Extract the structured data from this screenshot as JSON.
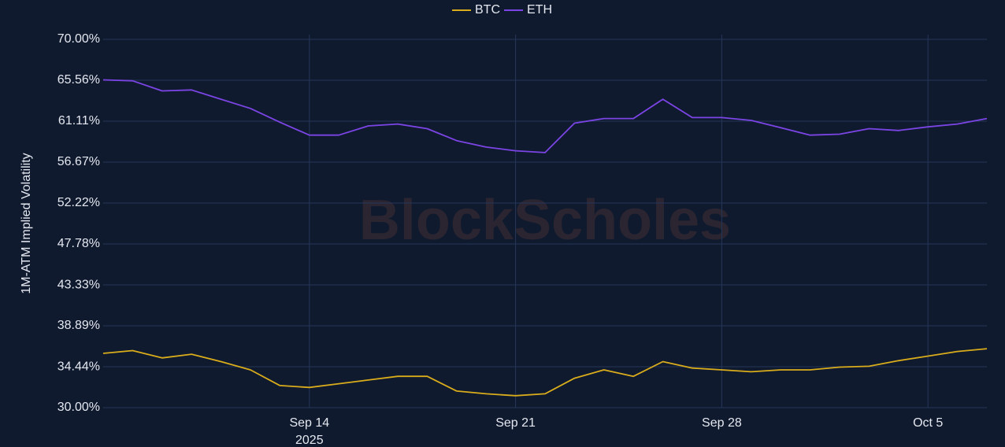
{
  "chart_data": {
    "type": "line",
    "y_axis_label": "1M-ATM Implied Volatility",
    "watermark": "BlockScholes",
    "x_year_label": "2025",
    "x": [
      "2025-09-07",
      "2025-09-08",
      "2025-09-09",
      "2025-09-10",
      "2025-09-11",
      "2025-09-12",
      "2025-09-13",
      "2025-09-14",
      "2025-09-15",
      "2025-09-16",
      "2025-09-17",
      "2025-09-18",
      "2025-09-19",
      "2025-09-20",
      "2025-09-21",
      "2025-09-22",
      "2025-09-23",
      "2025-09-24",
      "2025-09-25",
      "2025-09-26",
      "2025-09-27",
      "2025-09-28",
      "2025-09-29",
      "2025-09-30",
      "2025-10-01",
      "2025-10-02",
      "2025-10-03",
      "2025-10-04",
      "2025-10-05",
      "2025-10-06",
      "2025-10-07"
    ],
    "series": [
      {
        "name": "BTC",
        "color": "#d9ac1c",
        "values": [
          35.9,
          36.2,
          35.4,
          35.8,
          35.0,
          34.1,
          32.4,
          32.2,
          32.6,
          33.0,
          33.4,
          33.4,
          31.8,
          31.5,
          31.3,
          31.5,
          33.2,
          34.1,
          33.4,
          35.0,
          34.3,
          34.1,
          33.9,
          34.1,
          34.1,
          34.4,
          34.5,
          35.1,
          35.6,
          36.1,
          36.4
        ]
      },
      {
        "name": "ETH",
        "color": "#7b45e6",
        "values": [
          65.6,
          65.5,
          64.4,
          64.5,
          63.5,
          62.5,
          61.0,
          59.6,
          59.6,
          60.6,
          60.8,
          60.3,
          59.0,
          58.3,
          57.9,
          57.7,
          60.9,
          61.4,
          61.4,
          63.5,
          61.5,
          61.5,
          61.2,
          60.4,
          59.6,
          59.7,
          60.3,
          60.1,
          60.5,
          60.8,
          61.4
        ]
      }
    ],
    "xlim": [
      "2025-09-07",
      "2025-10-07"
    ],
    "xticks": [
      {
        "value": "2025-09-14",
        "label": "Sep 14"
      },
      {
        "value": "2025-09-21",
        "label": "Sep 21"
      },
      {
        "value": "2025-09-28",
        "label": "Sep 28"
      },
      {
        "value": "2025-10-05",
        "label": "Oct 5"
      }
    ],
    "ylim": [
      30,
      70
    ],
    "yticks": [
      {
        "value": 30,
        "label": "30.00%"
      },
      {
        "value": 34.44,
        "label": "34.44%"
      },
      {
        "value": 38.89,
        "label": "38.89%"
      },
      {
        "value": 43.33,
        "label": "43.33%"
      },
      {
        "value": 47.78,
        "label": "47.78%"
      },
      {
        "value": 52.22,
        "label": "52.22%"
      },
      {
        "value": 56.67,
        "label": "56.67%"
      },
      {
        "value": 61.11,
        "label": "61.11%"
      },
      {
        "value": 65.56,
        "label": "65.56%"
      },
      {
        "value": 70,
        "label": "70.00%"
      }
    ],
    "grid": true,
    "legend": "top"
  }
}
